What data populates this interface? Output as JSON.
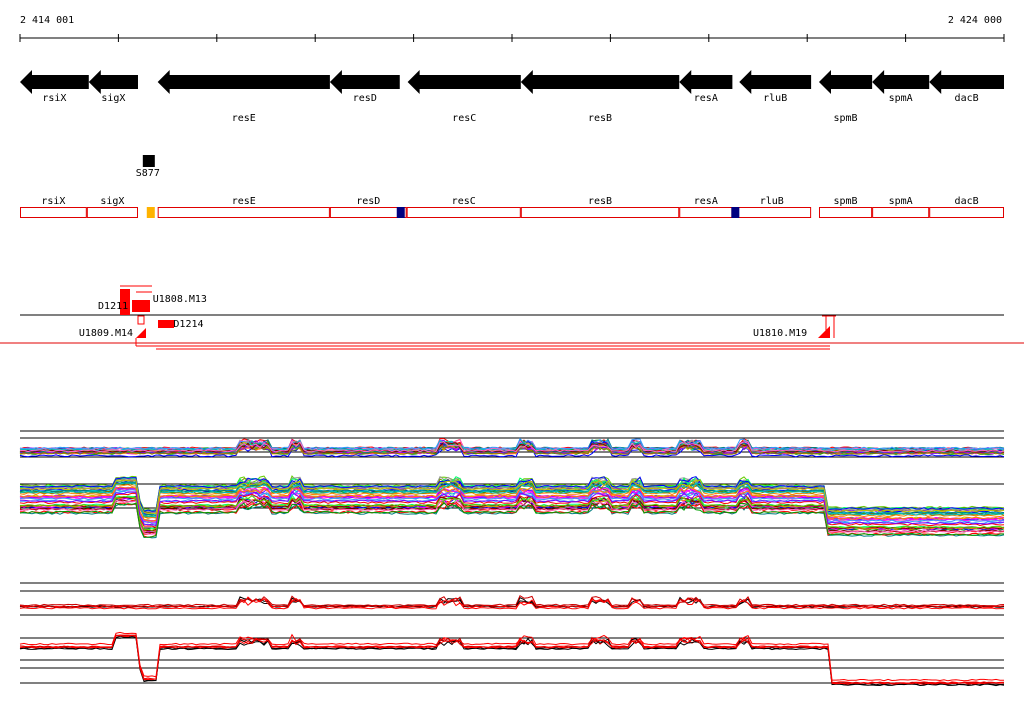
{
  "ruler": {
    "start_label": "2 414 001",
    "end_label": "2 424 000",
    "start_pos": 2414001,
    "end_pos": 2424000
  },
  "genes": [
    {
      "name": "rsiX",
      "start": 2414001,
      "end": 2414700,
      "strand": "-",
      "label_row": 0
    },
    {
      "name": "sigX",
      "start": 2414700,
      "end": 2415200,
      "strand": "-",
      "label_row": 0
    },
    {
      "name": "resE",
      "start": 2415400,
      "end": 2417150,
      "strand": "-",
      "label_row": 1
    },
    {
      "name": "resD",
      "start": 2417150,
      "end": 2417860,
      "strand": "-",
      "label_row": 0
    },
    {
      "name": "resC",
      "start": 2417940,
      "end": 2419090,
      "strand": "-",
      "label_row": 1
    },
    {
      "name": "resB",
      "start": 2419090,
      "end": 2420700,
      "strand": "-",
      "label_row": 1
    },
    {
      "name": "resA",
      "start": 2420700,
      "end": 2421240,
      "strand": "-",
      "label_row": 0
    },
    {
      "name": "rluB",
      "start": 2421310,
      "end": 2422040,
      "strand": "-",
      "label_row": 0
    },
    {
      "name": "spmB",
      "start": 2422120,
      "end": 2422660,
      "strand": "-",
      "label_row": 1
    },
    {
      "name": "spmA",
      "start": 2422660,
      "end": 2423240,
      "strand": "-",
      "label_row": 0
    },
    {
      "name": "dacB",
      "start": 2423240,
      "end": 2424000,
      "strand": "-",
      "label_row": 0
    }
  ],
  "feature_marker": {
    "label": "S877",
    "pos": 2415310
  },
  "annotation_boxes": [
    {
      "name": "rsiX",
      "start": 2414001,
      "end": 2414680
    },
    {
      "name": "sigX",
      "start": 2414680,
      "end": 2415200
    },
    {
      "name": "resE",
      "start": 2415400,
      "end": 2417150
    },
    {
      "name": "resD",
      "start": 2417150,
      "end": 2417930
    },
    {
      "name": "resC",
      "start": 2417930,
      "end": 2419090
    },
    {
      "name": "resB",
      "start": 2419090,
      "end": 2420700
    },
    {
      "name": "resA",
      "start": 2420700,
      "end": 2421240
    },
    {
      "name": "rluB",
      "start": 2421240,
      "end": 2422040
    },
    {
      "name": "spmB",
      "start": 2422120,
      "end": 2422660
    },
    {
      "name": "spmA",
      "start": 2422660,
      "end": 2423240
    },
    {
      "name": "dacB",
      "start": 2423240,
      "end": 2424000
    }
  ],
  "annotation_markers": [
    {
      "pos": 2415330,
      "color": "#ffb300"
    },
    {
      "pos": 2417870,
      "color": "#000080"
    },
    {
      "pos": 2421270,
      "color": "#000080"
    }
  ],
  "tu_labels": [
    {
      "text": "D1211",
      "pos": 2415100,
      "side": "top"
    },
    {
      "text": "U1808.M13",
      "pos": 2415350,
      "side": "top"
    },
    {
      "text": "U1809.M14",
      "pos": 2415150,
      "side": "bottom"
    },
    {
      "text": "D1214",
      "pos": 2415560,
      "side": "bottom"
    },
    {
      "text": "U1810.M19",
      "pos": 2422000,
      "side": "bottom"
    }
  ],
  "colors": {
    "gene": "#000000",
    "box": "#e00000",
    "tu": "#ff0000",
    "axis": "#000000"
  }
}
